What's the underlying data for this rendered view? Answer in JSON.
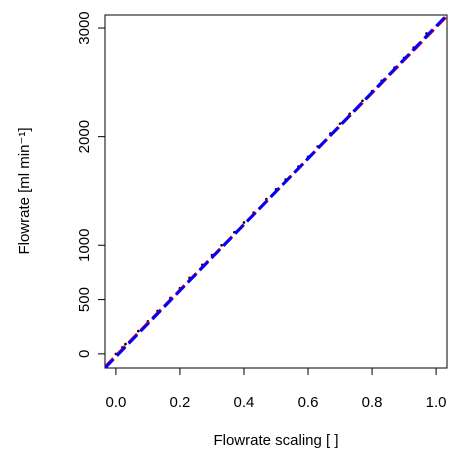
{
  "chart_data": {
    "type": "scatter",
    "xlabel": "Flowrate scaling [ ]",
    "ylabel": "Flowrate [ml min⁻¹]",
    "xlim": [
      -0.034,
      1.034
    ],
    "ylim": [
      -130,
      3120
    ],
    "xticks": [
      {
        "value": 0,
        "label": "0.0"
      },
      {
        "value": 0.2,
        "label": "0.2"
      },
      {
        "value": 0.4,
        "label": "0.4"
      },
      {
        "value": 0.6,
        "label": "0.6"
      },
      {
        "value": 0.8,
        "label": "0.8"
      },
      {
        "value": 1,
        "label": "1.0"
      }
    ],
    "yticks": [
      0,
      500,
      1000,
      2000,
      3000
    ],
    "series": [
      {
        "color": "#000000",
        "x": [
          0,
          0.02,
          0.03,
          0.07,
          0.1,
          0.13,
          0.17,
          0.2,
          0.23,
          0.27,
          0.3,
          0.33,
          0.37,
          0.4,
          0.43,
          0.47,
          0.5,
          0.53,
          0.57,
          0.6,
          0.63,
          0.67,
          0.7,
          0.73,
          0.77,
          0.8,
          0.83,
          0.87,
          0.9,
          0.93,
          0.97
        ],
        "values": [
          0,
          60,
          90,
          210,
          300,
          395,
          515,
          605,
          700,
          820,
          910,
          1000,
          1120,
          1210,
          1300,
          1425,
          1515,
          1605,
          1725,
          1815,
          1910,
          2030,
          2120,
          2210,
          2330,
          2420,
          2515,
          2635,
          2725,
          2820,
          2950
        ]
      }
    ],
    "lines": [
      {
        "color": "#ff0000",
        "x": [
          -0.034,
          1.034
        ],
        "values": [
          -120,
          3110
        ]
      },
      {
        "color": "#0000ff",
        "x": [
          -0.034,
          1.034
        ],
        "values": [
          -130,
          3120
        ]
      }
    ]
  }
}
